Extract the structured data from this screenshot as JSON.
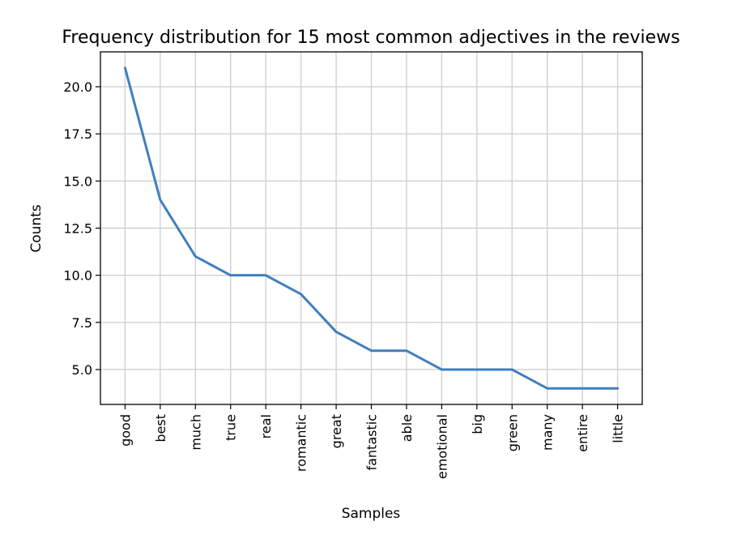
{
  "chart_data": {
    "type": "line",
    "title": "Frequency distribution for 15 most common adjectives in the reviews",
    "xlabel": "Samples",
    "ylabel": "Counts",
    "categories": [
      "good",
      "best",
      "much",
      "true",
      "real",
      "romantic",
      "great",
      "fantastic",
      "able",
      "emotional",
      "big",
      "green",
      "many",
      "entire",
      "little"
    ],
    "series": [
      {
        "values": [
          21,
          14,
          11,
          10,
          10,
          9,
          7,
          6,
          6,
          5,
          5,
          5,
          4,
          4,
          4
        ]
      }
    ],
    "yticks": [
      5.0,
      7.5,
      10.0,
      12.5,
      15.0,
      17.5,
      20.0
    ],
    "ytick_labels": [
      "5.0",
      "7.5",
      "10.0",
      "12.5",
      "15.0",
      "17.5",
      "20.0"
    ],
    "ylim": [
      3.15,
      21.85
    ],
    "grid": true,
    "line_color": "#3f7fbf"
  }
}
